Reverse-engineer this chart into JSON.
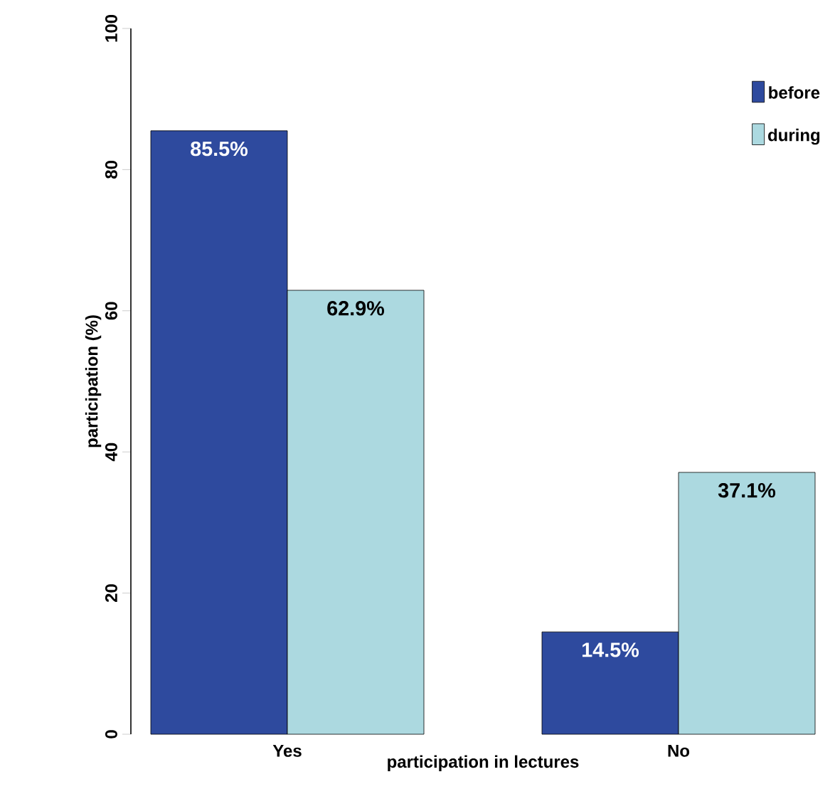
{
  "chart_data": {
    "type": "bar",
    "xlabel": "participation in lectures",
    "ylabel": "participation (%)",
    "categories": [
      "Yes",
      "No"
    ],
    "series": [
      {
        "name": "before",
        "color": "#2e4a9e",
        "values": [
          85.5,
          14.5
        ],
        "value_labels": [
          "85.5%",
          "14.5%"
        ]
      },
      {
        "name": "during",
        "color": "#acd9e0",
        "values": [
          62.9,
          37.1
        ],
        "value_labels": [
          "62.9%",
          "37.1%"
        ]
      }
    ],
    "ylim": [
      0,
      100
    ],
    "yticks": [
      0,
      20,
      40,
      60,
      80,
      100
    ],
    "legend": "top right",
    "grid": false
  }
}
